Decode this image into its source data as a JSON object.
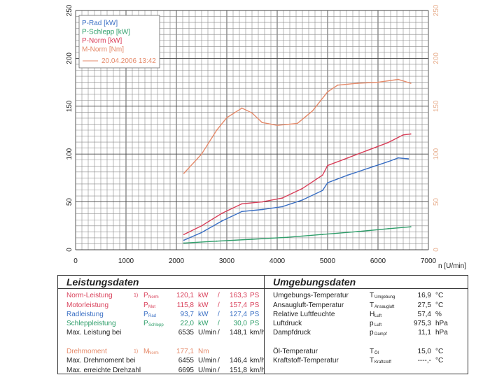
{
  "chart_data": {
    "type": "line",
    "xlabel": "n [U/min]",
    "xlim": [
      0,
      7000
    ],
    "x_ticks": [
      "0",
      "1000",
      "2000",
      "3000",
      "4000",
      "5000",
      "6000",
      "7000"
    ],
    "ylim_left": [
      0,
      250
    ],
    "y_ticks_left": [
      "0",
      "50",
      "100",
      "150",
      "200",
      "250"
    ],
    "ylim_right": [
      0,
      250
    ],
    "y_ticks_right": [
      "0",
      "50",
      "100",
      "150",
      "200",
      "250"
    ],
    "legend": {
      "placement": "top-left",
      "entries": [
        {
          "label": "P-Rad [kW]",
          "color": "#3a6fc4"
        },
        {
          "label": "P-Schlepp [kW]",
          "color": "#2e9e6a"
        },
        {
          "label": "P-Norm [kW]",
          "color": "#d9405a"
        },
        {
          "label": "M-Norm [Nm]",
          "color": "#e58a6a"
        }
      ],
      "timestamp": "20.04.2006 13:42"
    },
    "series": [
      {
        "name": "P-Rad [kW]",
        "color": "#3a6fc4",
        "points": [
          [
            2150,
            10
          ],
          [
            2500,
            18
          ],
          [
            2900,
            30
          ],
          [
            3300,
            40
          ],
          [
            3700,
            42
          ],
          [
            4100,
            45
          ],
          [
            4500,
            52
          ],
          [
            4900,
            62
          ],
          [
            5000,
            70
          ],
          [
            5400,
            78
          ],
          [
            5800,
            85
          ],
          [
            6200,
            92
          ],
          [
            6400,
            96
          ],
          [
            6600,
            95
          ]
        ]
      },
      {
        "name": "P-Schlepp [kW]",
        "color": "#2e9e6a",
        "points": [
          [
            2150,
            7
          ],
          [
            2800,
            9
          ],
          [
            3500,
            11
          ],
          [
            4200,
            13
          ],
          [
            4900,
            16
          ],
          [
            5600,
            19
          ],
          [
            6200,
            22
          ],
          [
            6650,
            24
          ]
        ]
      },
      {
        "name": "P-Norm [kW]",
        "color": "#d9405a",
        "points": [
          [
            2150,
            16
          ],
          [
            2500,
            25
          ],
          [
            2900,
            38
          ],
          [
            3300,
            48
          ],
          [
            3700,
            50
          ],
          [
            4100,
            54
          ],
          [
            4500,
            64
          ],
          [
            4900,
            78
          ],
          [
            5000,
            88
          ],
          [
            5400,
            96
          ],
          [
            5800,
            104
          ],
          [
            6200,
            112
          ],
          [
            6500,
            120
          ],
          [
            6650,
            121
          ]
        ]
      },
      {
        "name": "M-Norm [Nm]",
        "color": "#e58a6a",
        "points": [
          [
            2150,
            80
          ],
          [
            2500,
            100
          ],
          [
            2800,
            125
          ],
          [
            3000,
            138
          ],
          [
            3300,
            148
          ],
          [
            3500,
            143
          ],
          [
            3700,
            133
          ],
          [
            4000,
            130
          ],
          [
            4400,
            132
          ],
          [
            4700,
            145
          ],
          [
            5000,
            165
          ],
          [
            5200,
            172
          ],
          [
            5600,
            174
          ],
          [
            6000,
            175
          ],
          [
            6400,
            178
          ],
          [
            6650,
            174
          ]
        ]
      }
    ]
  },
  "leistung": {
    "title": "Leistungsdaten",
    "rows": [
      {
        "label": "Norm-Leistung",
        "note": "1)",
        "sym": "P",
        "sub": "Norm",
        "v1": "120,1",
        "u1": "kW",
        "sep": "/",
        "v2": "163,3",
        "u2": "PS",
        "color": "#d9405a"
      },
      {
        "label": "Motorleistung",
        "note": "",
        "sym": "P",
        "sub": "Mot",
        "v1": "115,8",
        "u1": "kW",
        "sep": "/",
        "v2": "157,4",
        "u2": "PS",
        "color": "#d9405a"
      },
      {
        "label": "Radleistung",
        "note": "",
        "sym": "P",
        "sub": "Rad",
        "v1": "93,7",
        "u1": "kW",
        "sep": "/",
        "v2": "127,4",
        "u2": "PS",
        "color": "#3a6fc4"
      },
      {
        "label": "Schleppleistung",
        "note": "",
        "sym": "P",
        "sub": "Schlepp",
        "v1": "22,0",
        "u1": "kW",
        "sep": "/",
        "v2": "30,0",
        "u2": "PS",
        "color": "#2e9e6a"
      },
      {
        "label": "Max. Leistung bei",
        "note": "",
        "sym": "",
        "sub": "",
        "v1": "6535",
        "u1": "U/min",
        "sep": "/",
        "v2": "148,1",
        "u2": "km/h",
        "color": "#222222"
      },
      {
        "label": "",
        "note": "",
        "sym": "",
        "sub": "",
        "v1": "",
        "u1": "",
        "sep": "",
        "v2": "",
        "u2": "",
        "color": "#222222"
      },
      {
        "label": "Drehmoment",
        "note": "1)",
        "sym": "M",
        "sub": "Norm",
        "v1": "177,1",
        "u1": "Nm",
        "sep": "",
        "v2": "",
        "u2": "",
        "color": "#e58a6a"
      },
      {
        "label": "Max. Drehmoment bei",
        "note": "",
        "sym": "",
        "sub": "",
        "v1": "6455",
        "u1": "U/min",
        "sep": "/",
        "v2": "146,4",
        "u2": "km/h",
        "color": "#222222"
      },
      {
        "label": "Max. erreichte Drehzahl",
        "note": "",
        "sym": "",
        "sub": "",
        "v1": "6695",
        "u1": "U/min",
        "sep": "/",
        "v2": "151,8",
        "u2": "km/h",
        "color": "#222222"
      }
    ]
  },
  "umgebung": {
    "title": "Umgebungsdaten",
    "rows": [
      {
        "label": "Umgebungs-Temperatur",
        "sym": "T",
        "sub": "Umgebung",
        "value": "16,9",
        "unit": "°C"
      },
      {
        "label": "Ansaugluft-Temperatur",
        "sym": "T",
        "sub": "Ansaugluft",
        "value": "27,5",
        "unit": "°C"
      },
      {
        "label": "Relative Luftfeuchte",
        "sym": "H",
        "sub": "Luft",
        "value": "57,4",
        "unit": "%"
      },
      {
        "label": "Luftdruck",
        "sym": "p",
        "sub": "Luft",
        "value": "975,3",
        "unit": "hPa"
      },
      {
        "label": "Dampfdruck",
        "sym": "p",
        "sub": "Dampf",
        "value": "11,1",
        "unit": "hPa"
      },
      {
        "label": "",
        "sym": "",
        "sub": "",
        "value": "",
        "unit": ""
      },
      {
        "label": "Öl-Temperatur",
        "sym": "T",
        "sub": "Öl",
        "value": "15,0",
        "unit": "°C"
      },
      {
        "label": "Kraftstoff-Temperatur",
        "sym": "T",
        "sub": "Kraftstoff",
        "value": "----,-",
        "unit": "°C"
      }
    ]
  }
}
